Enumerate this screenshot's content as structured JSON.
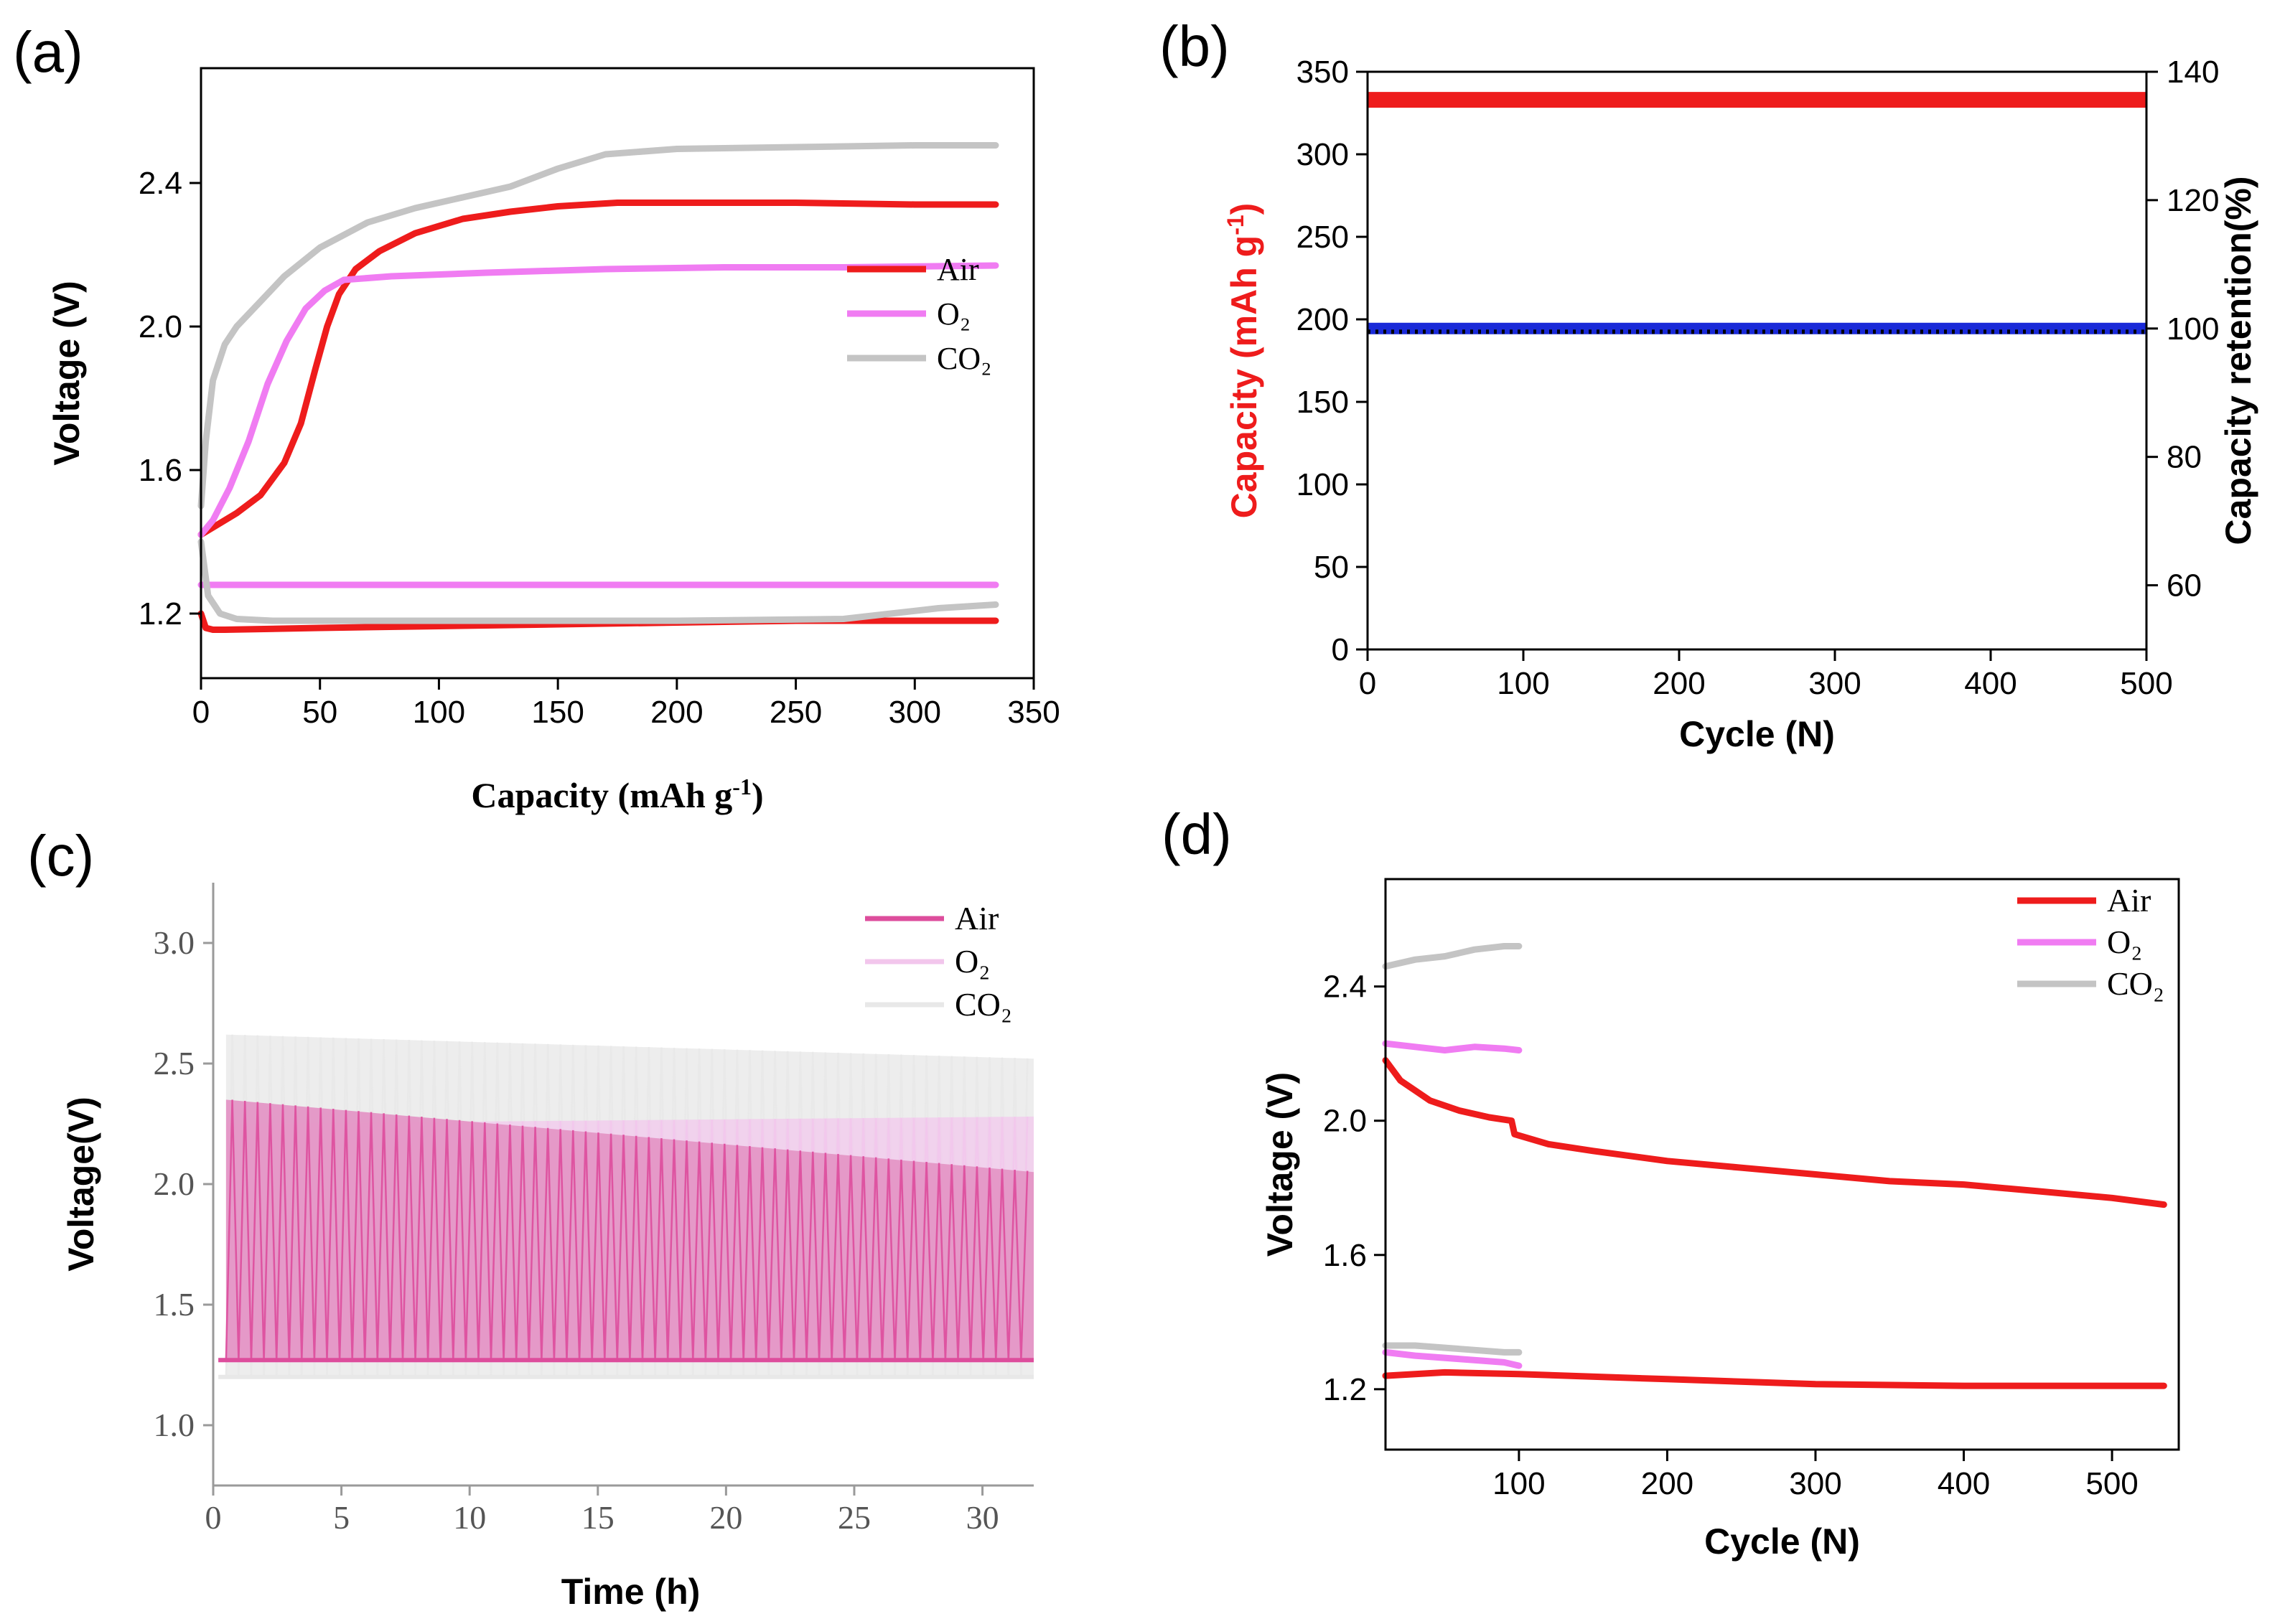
{
  "figure": {
    "panels": [
      "(a)",
      "(b)",
      "(c)",
      "(d)"
    ]
  },
  "colors": {
    "air": "#ee1c1c",
    "o2": "#f07cf2",
    "co2": "#c4c4c4",
    "c_air": "#dd4d9c",
    "c_fill": "#e496c6",
    "c_o2": "#f2c6ec",
    "c_co2": "#e8e8e8",
    "blue": "#1a2ad8",
    "black": "#000000"
  },
  "chart_data": [
    {
      "panel": "(a)",
      "type": "line",
      "xlabel": "Capacity (mAh g",
      "xlabel_sup": "-1",
      "xlabel_tail": ")",
      "ylabel": "Voltage (V)",
      "xlim": [
        0,
        350
      ],
      "ylim": [
        1.02,
        2.72
      ],
      "xticks": [
        0,
        50,
        100,
        150,
        200,
        250,
        300,
        350
      ],
      "yticks": [
        1.2,
        1.6,
        2.0,
        2.4
      ],
      "ytick_labels": [
        "1.2",
        "1.6",
        "2.0",
        "2.4"
      ],
      "legend": [
        "Air",
        "O₂",
        "CO₂"
      ],
      "legend_position": "center-right",
      "series": [
        {
          "name": "Air charge",
          "color_key": "air",
          "x": [
            0,
            5,
            15,
            25,
            35,
            42,
            48,
            53,
            58,
            65,
            75,
            90,
            110,
            130,
            150,
            175,
            200,
            250,
            300,
            334
          ],
          "y": [
            1.42,
            1.44,
            1.48,
            1.53,
            1.62,
            1.73,
            1.88,
            2.0,
            2.09,
            2.16,
            2.21,
            2.26,
            2.3,
            2.32,
            2.335,
            2.345,
            2.345,
            2.345,
            2.34,
            2.34
          ]
        },
        {
          "name": "Air discharge",
          "color_key": "air",
          "x": [
            0,
            2,
            5,
            10,
            50,
            100,
            150,
            200,
            250,
            300,
            334
          ],
          "y": [
            1.2,
            1.16,
            1.155,
            1.155,
            1.16,
            1.165,
            1.17,
            1.175,
            1.18,
            1.18,
            1.18
          ]
        },
        {
          "name": "O2 charge",
          "color_key": "o2",
          "x": [
            0,
            5,
            12,
            20,
            28,
            36,
            44,
            52,
            60,
            80,
            120,
            170,
            220,
            270,
            334
          ],
          "y": [
            1.42,
            1.46,
            1.55,
            1.68,
            1.84,
            1.96,
            2.05,
            2.1,
            2.13,
            2.14,
            2.15,
            2.16,
            2.165,
            2.165,
            2.17
          ]
        },
        {
          "name": "O2 discharge",
          "color_key": "o2",
          "x": [
            0,
            10,
            100,
            200,
            300,
            334
          ],
          "y": [
            1.28,
            1.28,
            1.28,
            1.28,
            1.28,
            1.28
          ]
        },
        {
          "name": "CO2 charge",
          "color_key": "co2",
          "x": [
            0,
            2,
            5,
            10,
            15,
            25,
            35,
            50,
            70,
            90,
            110,
            130,
            150,
            170,
            200,
            250,
            300,
            334
          ],
          "y": [
            1.5,
            1.68,
            1.85,
            1.95,
            2.0,
            2.07,
            2.14,
            2.22,
            2.29,
            2.33,
            2.36,
            2.39,
            2.44,
            2.48,
            2.495,
            2.5,
            2.505,
            2.505
          ]
        },
        {
          "name": "CO2 discharge",
          "color_key": "co2",
          "x": [
            0,
            3,
            8,
            15,
            30,
            100,
            200,
            270,
            290,
            310,
            334
          ],
          "y": [
            1.4,
            1.25,
            1.2,
            1.185,
            1.18,
            1.18,
            1.18,
            1.185,
            1.2,
            1.215,
            1.225
          ]
        }
      ]
    },
    {
      "panel": "(b)",
      "type": "scatter",
      "xlabel": "Cycle (N)",
      "ylabel_left": "Capacity (mAh g",
      "ylabel_left_sup": "-1",
      "ylabel_left_tail": ")",
      "ylabel_right": "Capacity retention(%)",
      "xlim": [
        0,
        500
      ],
      "ylim_left": [
        0,
        350
      ],
      "ylim_right": [
        50,
        140
      ],
      "xticks": [
        0,
        100,
        200,
        300,
        400,
        500
      ],
      "yticks_left": [
        0,
        50,
        100,
        150,
        200,
        250,
        300,
        350
      ],
      "yticks_right": [
        60,
        80,
        100,
        120,
        140
      ],
      "series": [
        {
          "name": "Capacity",
          "axis": "left",
          "color_key": "air",
          "x": [
            0,
            500
          ],
          "y": [
            333,
            333
          ]
        },
        {
          "name": "Capacity retention",
          "axis": "right",
          "color_key": "blue",
          "x": [
            0,
            500
          ],
          "y": [
            100,
            100
          ]
        },
        {
          "name": "Capacity retention (points)",
          "axis": "right",
          "color_key": "black",
          "x": [
            0,
            500
          ],
          "y": [
            99.5,
            99.5
          ]
        }
      ]
    },
    {
      "panel": "(c)",
      "type": "line",
      "xlabel": "Time (h)",
      "ylabel": "Voltage(V)",
      "xlim": [
        0,
        32
      ],
      "ylim": [
        0.75,
        3.25
      ],
      "xticks": [
        0,
        5,
        10,
        15,
        20,
        25,
        30
      ],
      "yticks": [
        1.0,
        1.5,
        2.0,
        2.5,
        3.0
      ],
      "ytick_labels": [
        "1.0",
        "1.5",
        "2.0",
        "2.5",
        "3.0"
      ],
      "legend": [
        "Air",
        "O₂",
        "CO₂"
      ],
      "legend_position": "top-right",
      "series": [
        {
          "name": "Air",
          "color_key": "c_air",
          "charge_start": 2.35,
          "charge_end": 2.05,
          "discharge": 1.27
        },
        {
          "name": "O2",
          "color_key": "c_o2",
          "charge_start": 2.25,
          "charge_end": 2.28,
          "discharge": 1.27
        },
        {
          "name": "CO2",
          "color_key": "c_co2",
          "charge_start": 2.62,
          "charge_end": 2.52,
          "discharge": 1.2
        }
      ]
    },
    {
      "panel": "(d)",
      "type": "line",
      "xlabel": "Cycle  (N)",
      "ylabel": "Voltage (V)",
      "xlim": [
        10,
        545
      ],
      "ylim": [
        1.02,
        2.72
      ],
      "xticks": [
        100,
        200,
        300,
        400,
        500
      ],
      "yticks": [
        1.2,
        1.6,
        2.0,
        2.4
      ],
      "ytick_labels": [
        "1.2",
        "1.6",
        "2.0",
        "2.4"
      ],
      "legend": [
        "Air",
        "O₂",
        "CO₂"
      ],
      "legend_position": "top-right",
      "series": [
        {
          "name": "Air charge",
          "color_key": "air",
          "x": [
            10,
            20,
            40,
            60,
            80,
            95,
            97,
            120,
            150,
            200,
            250,
            300,
            350,
            400,
            450,
            500,
            535
          ],
          "y": [
            2.18,
            2.12,
            2.06,
            2.03,
            2.01,
            2.0,
            1.96,
            1.93,
            1.91,
            1.88,
            1.86,
            1.84,
            1.82,
            1.81,
            1.79,
            1.77,
            1.75
          ]
        },
        {
          "name": "Air discharge",
          "color_key": "air",
          "x": [
            10,
            50,
            100,
            200,
            300,
            400,
            535
          ],
          "y": [
            1.24,
            1.25,
            1.245,
            1.23,
            1.215,
            1.21,
            1.21
          ]
        },
        {
          "name": "O2 charge",
          "color_key": "o2",
          "x": [
            10,
            30,
            50,
            70,
            90,
            100
          ],
          "y": [
            2.23,
            2.22,
            2.21,
            2.22,
            2.215,
            2.21
          ]
        },
        {
          "name": "O2 discharge",
          "color_key": "o2",
          "x": [
            10,
            30,
            60,
            90,
            100
          ],
          "y": [
            1.31,
            1.3,
            1.29,
            1.28,
            1.27
          ]
        },
        {
          "name": "CO2 charge",
          "color_key": "co2",
          "x": [
            10,
            30,
            50,
            70,
            90,
            100
          ],
          "y": [
            2.46,
            2.48,
            2.49,
            2.51,
            2.52,
            2.52
          ]
        },
        {
          "name": "CO2 discharge",
          "color_key": "co2",
          "x": [
            10,
            30,
            60,
            90,
            100
          ],
          "y": [
            1.33,
            1.33,
            1.32,
            1.31,
            1.31
          ]
        }
      ]
    }
  ]
}
